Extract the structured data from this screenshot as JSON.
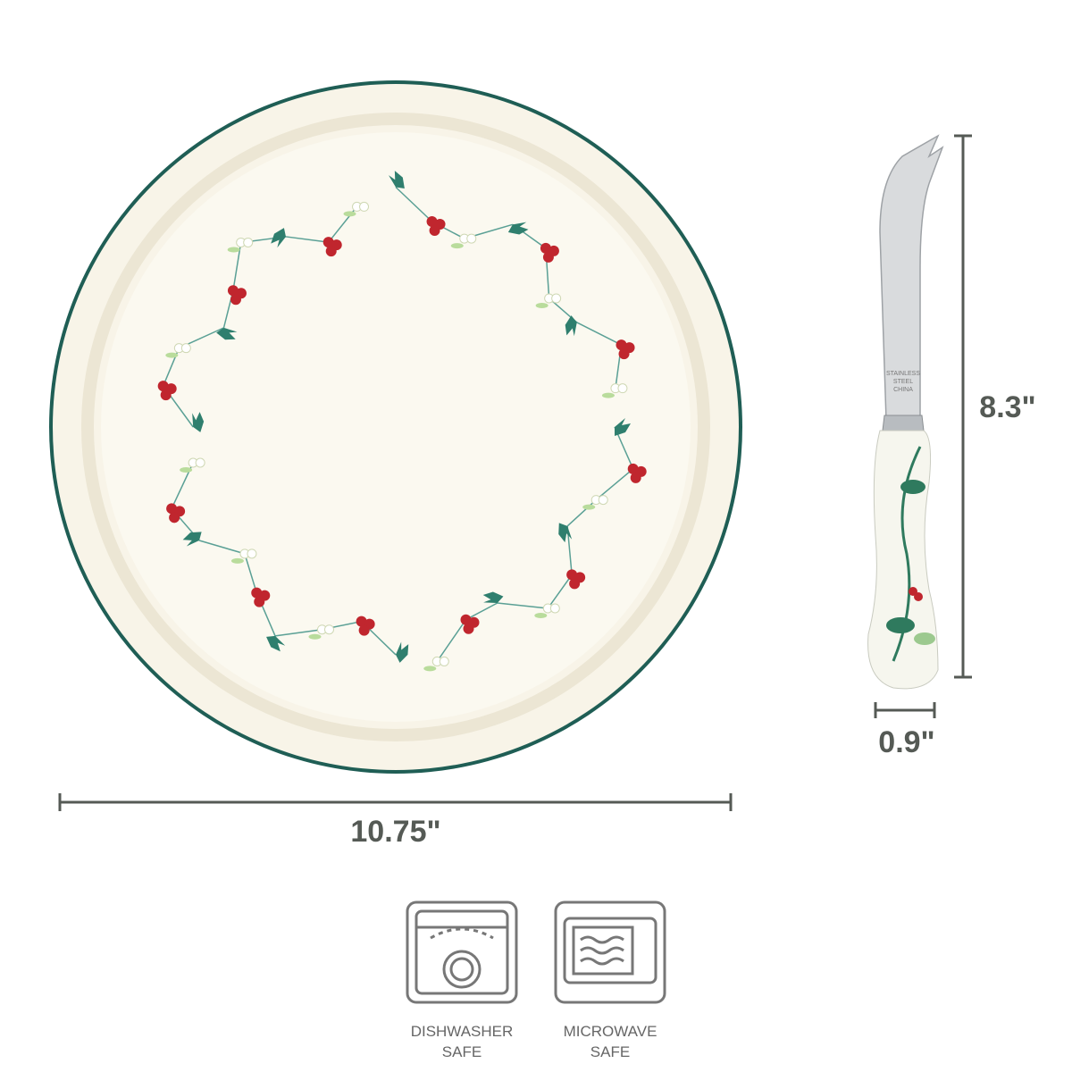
{
  "dimensions": {
    "plate_width": "10.75\"",
    "knife_length": "8.3\"",
    "handle_width": "0.9\""
  },
  "knife_stamp": [
    "STAINLESS",
    "STEEL",
    "CHINA"
  ],
  "badges": [
    {
      "label_lines": [
        "DISHWASHER",
        "SAFE"
      ]
    },
    {
      "label_lines": [
        "MICROWAVE",
        "SAFE"
      ]
    }
  ]
}
